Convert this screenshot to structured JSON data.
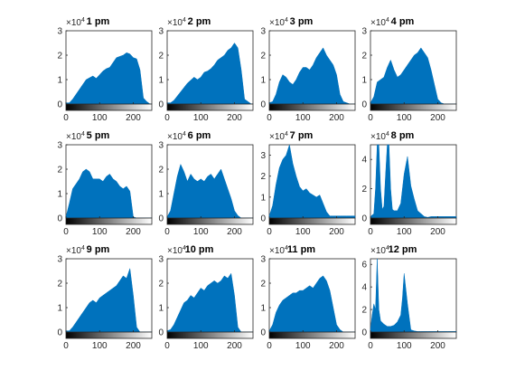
{
  "chart_data": [
    {
      "type": "area",
      "title": "1 pm",
      "exponent_label": "×10",
      "exponent": "4",
      "ylim": [
        0,
        3
      ],
      "yticks": [
        "0",
        "1",
        "2",
        "3"
      ],
      "xlim": [
        0,
        255
      ],
      "xticks": [
        "0",
        "100",
        "200"
      ],
      "color": "#0072BD",
      "x": [
        0,
        10,
        20,
        40,
        60,
        80,
        90,
        100,
        110,
        120,
        130,
        140,
        150,
        160,
        170,
        180,
        190,
        200,
        210,
        220,
        230,
        240,
        250,
        255
      ],
      "values": [
        0.05,
        0.05,
        0.2,
        0.6,
        1.0,
        1.15,
        1.05,
        1.2,
        1.35,
        1.45,
        1.5,
        1.7,
        1.9,
        1.95,
        2.0,
        2.1,
        2.05,
        1.9,
        1.85,
        1.4,
        0.25,
        0.1,
        0,
        0
      ]
    },
    {
      "type": "area",
      "title": "2 pm",
      "exponent_label": "×10",
      "exponent": "4",
      "ylim": [
        0,
        3
      ],
      "yticks": [
        "0",
        "1",
        "2",
        "3"
      ],
      "xlim": [
        0,
        255
      ],
      "xticks": [
        "0",
        "100",
        "200"
      ],
      "color": "#0072BD",
      "x": [
        0,
        10,
        20,
        40,
        60,
        80,
        90,
        100,
        110,
        120,
        130,
        140,
        150,
        160,
        170,
        180,
        190,
        200,
        210,
        220,
        230,
        240,
        250,
        255
      ],
      "values": [
        0.05,
        0.05,
        0.15,
        0.5,
        0.85,
        1.1,
        1.0,
        1.1,
        1.3,
        1.35,
        1.45,
        1.6,
        1.8,
        1.9,
        2.0,
        2.2,
        2.3,
        2.5,
        2.3,
        1.4,
        0.2,
        0.1,
        0,
        0
      ]
    },
    {
      "type": "area",
      "title": "3 pm",
      "exponent_label": "×10",
      "exponent": "4",
      "ylim": [
        0,
        3
      ],
      "yticks": [
        "0",
        "1",
        "2",
        "3"
      ],
      "xlim": [
        0,
        255
      ],
      "xticks": [
        "0",
        "100",
        "200"
      ],
      "color": "#0072BD",
      "x": [
        0,
        10,
        20,
        30,
        40,
        50,
        60,
        70,
        80,
        90,
        100,
        110,
        120,
        130,
        140,
        150,
        160,
        170,
        180,
        190,
        200,
        210,
        220,
        230,
        240,
        250,
        255
      ],
      "values": [
        0.05,
        0.1,
        0.4,
        0.9,
        1.2,
        1.1,
        0.9,
        0.8,
        1.0,
        1.3,
        1.5,
        1.5,
        1.4,
        1.6,
        1.9,
        2.1,
        2.3,
        2.0,
        1.8,
        1.6,
        1.2,
        0.4,
        0.1,
        0.05,
        0,
        0,
        0
      ]
    },
    {
      "type": "area",
      "title": "4 pm",
      "exponent_label": "×10",
      "exponent": "4",
      "ylim": [
        0,
        3
      ],
      "yticks": [
        "0",
        "1",
        "2",
        "3"
      ],
      "xlim": [
        0,
        255
      ],
      "xticks": [
        "0",
        "100",
        "200"
      ],
      "color": "#0072BD",
      "x": [
        0,
        10,
        20,
        30,
        40,
        50,
        60,
        70,
        80,
        90,
        100,
        110,
        120,
        130,
        140,
        150,
        160,
        170,
        180,
        190,
        200,
        210,
        220,
        230,
        240,
        250,
        255
      ],
      "values": [
        0.05,
        0.3,
        0.9,
        1.0,
        1.1,
        1.5,
        1.8,
        1.4,
        1.1,
        1.2,
        1.4,
        1.6,
        1.8,
        2.0,
        2.1,
        2.3,
        2.1,
        1.9,
        1.4,
        0.8,
        0.2,
        0.05,
        0,
        0,
        0,
        0,
        0
      ]
    },
    {
      "type": "area",
      "title": "5 pm",
      "exponent_label": "×10",
      "exponent": "4",
      "ylim": [
        0,
        3
      ],
      "yticks": [
        "0",
        "1",
        "2",
        "3"
      ],
      "xlim": [
        0,
        255
      ],
      "xticks": [
        "0",
        "100",
        "200"
      ],
      "color": "#0072BD",
      "x": [
        0,
        10,
        20,
        30,
        40,
        50,
        60,
        70,
        80,
        90,
        100,
        110,
        120,
        130,
        140,
        150,
        160,
        170,
        180,
        190,
        200,
        210,
        220,
        230,
        240,
        250,
        255
      ],
      "values": [
        0.05,
        0.6,
        1.2,
        1.4,
        1.6,
        1.9,
        2.0,
        1.9,
        1.6,
        1.6,
        1.6,
        1.5,
        1.7,
        1.8,
        1.6,
        1.5,
        1.3,
        1.2,
        1.3,
        1.1,
        0.05,
        0,
        0,
        0,
        0,
        0,
        0
      ]
    },
    {
      "type": "area",
      "title": "6 pm",
      "exponent_label": "×10",
      "exponent": "4",
      "ylim": [
        0,
        3
      ],
      "yticks": [
        "0",
        "1",
        "2",
        "3"
      ],
      "xlim": [
        0,
        255
      ],
      "xticks": [
        "0",
        "100",
        "200"
      ],
      "color": "#0072BD",
      "x": [
        0,
        10,
        20,
        30,
        40,
        50,
        60,
        70,
        80,
        90,
        100,
        110,
        120,
        130,
        140,
        150,
        160,
        170,
        180,
        190,
        200,
        210,
        220,
        230,
        240,
        250,
        255
      ],
      "values": [
        0.05,
        0.3,
        1.0,
        1.7,
        2.2,
        1.9,
        1.5,
        1.8,
        1.6,
        1.5,
        1.6,
        1.5,
        1.7,
        1.8,
        1.6,
        1.8,
        2.0,
        1.6,
        1.2,
        0.8,
        0.3,
        0.1,
        0,
        0,
        0,
        0,
        0
      ]
    },
    {
      "type": "area",
      "title": "7 pm",
      "exponent_label": "×10",
      "exponent": "4",
      "ylim": [
        0,
        3.5
      ],
      "yticks": [
        "0",
        "1",
        "2",
        "3"
      ],
      "xlim": [
        0,
        255
      ],
      "xticks": [
        "0",
        "100",
        "200"
      ],
      "color": "#0072BD",
      "x": [
        0,
        10,
        20,
        30,
        40,
        50,
        60,
        70,
        80,
        90,
        100,
        110,
        120,
        130,
        140,
        150,
        160,
        170,
        180,
        190,
        200,
        210,
        220,
        230,
        240,
        250,
        255
      ],
      "values": [
        0.1,
        0.6,
        1.6,
        2.4,
        2.8,
        3.0,
        3.5,
        2.6,
        2.0,
        1.5,
        1.3,
        1.4,
        1.2,
        1.1,
        1.0,
        1.1,
        0.7,
        0.3,
        0.1,
        0.1,
        0.1,
        0.1,
        0.1,
        0.1,
        0.1,
        0.1,
        0.1
      ]
    },
    {
      "type": "area",
      "title": "8 pm",
      "exponent_label": "×10",
      "exponent": "4",
      "ylim": [
        0,
        5
      ],
      "yticks": [
        "0",
        "2",
        "4"
      ],
      "xlim": [
        0,
        255
      ],
      "xticks": [
        "0",
        "100",
        "200"
      ],
      "color": "#0072BD",
      "x": [
        0,
        10,
        15,
        20,
        25,
        30,
        35,
        40,
        45,
        50,
        55,
        60,
        65,
        70,
        80,
        90,
        100,
        110,
        120,
        130,
        140,
        150,
        160,
        170,
        180,
        190,
        200,
        220,
        240,
        255
      ],
      "values": [
        0.1,
        0.3,
        2.0,
        5.0,
        5.0,
        2.0,
        0.6,
        0.8,
        3.0,
        5.0,
        5.0,
        2.0,
        0.6,
        0.5,
        0.5,
        1.0,
        3.0,
        4.2,
        2.2,
        1.3,
        0.5,
        0.3,
        0.1,
        0.05,
        0.1,
        0.1,
        0.1,
        0.1,
        0.1,
        0.1
      ]
    },
    {
      "type": "area",
      "title": "9 pm",
      "exponent_label": "×10",
      "exponent": "4",
      "ylim": [
        0,
        3
      ],
      "yticks": [
        "0",
        "1",
        "2",
        "3"
      ],
      "xlim": [
        0,
        255
      ],
      "xticks": [
        "0",
        "100",
        "200"
      ],
      "color": "#0072BD",
      "x": [
        0,
        10,
        20,
        30,
        40,
        50,
        60,
        70,
        80,
        90,
        100,
        110,
        120,
        130,
        140,
        150,
        160,
        170,
        180,
        190,
        200,
        210,
        220,
        230,
        240,
        250,
        255
      ],
      "values": [
        0.05,
        0.05,
        0.2,
        0.4,
        0.6,
        0.8,
        1.0,
        1.2,
        1.3,
        1.2,
        1.4,
        1.5,
        1.6,
        1.7,
        1.8,
        1.9,
        2.1,
        2.3,
        2.2,
        2.6,
        1.5,
        0.2,
        0,
        0,
        0,
        0,
        0
      ]
    },
    {
      "type": "area",
      "title": "10 pm",
      "exponent_label": "×10",
      "exponent": "4",
      "ylim": [
        0,
        3
      ],
      "yticks": [
        "0",
        "1",
        "2",
        "3"
      ],
      "xlim": [
        0,
        255
      ],
      "xticks": [
        "0",
        "100",
        "200"
      ],
      "color": "#0072BD",
      "x": [
        0,
        10,
        20,
        30,
        40,
        50,
        60,
        70,
        80,
        90,
        100,
        110,
        120,
        130,
        140,
        150,
        160,
        170,
        180,
        190,
        200,
        210,
        220,
        230,
        240,
        250,
        255
      ],
      "values": [
        0.05,
        0.1,
        0.3,
        0.6,
        0.9,
        1.2,
        1.3,
        1.5,
        1.4,
        1.6,
        1.8,
        1.7,
        1.9,
        2.0,
        2.1,
        2.0,
        2.1,
        2.3,
        2.2,
        2.4,
        1.5,
        0.2,
        0,
        0,
        0,
        0,
        0
      ]
    },
    {
      "type": "area",
      "title": "11 pm",
      "exponent_label": "×10",
      "exponent": "4",
      "ylim": [
        0,
        3
      ],
      "yticks": [
        "0",
        "1",
        "2",
        "3"
      ],
      "xlim": [
        0,
        255
      ],
      "xticks": [
        "0",
        "100",
        "200"
      ],
      "color": "#0072BD",
      "x": [
        0,
        10,
        20,
        30,
        40,
        50,
        60,
        70,
        80,
        90,
        100,
        110,
        120,
        130,
        140,
        150,
        160,
        170,
        180,
        190,
        200,
        210,
        220,
        230,
        240,
        250,
        255
      ],
      "values": [
        0.05,
        0.3,
        0.8,
        1.1,
        1.3,
        1.4,
        1.5,
        1.6,
        1.6,
        1.7,
        1.7,
        1.8,
        1.9,
        1.8,
        2.0,
        2.2,
        2.3,
        2.1,
        1.7,
        1.0,
        0.3,
        0.1,
        0,
        0,
        0,
        0,
        0
      ]
    },
    {
      "type": "area",
      "title": "12 pm",
      "exponent_label": "×10",
      "exponent": "4",
      "ylim": [
        0,
        6.5
      ],
      "yticks": [
        "0",
        "2",
        "4",
        "6"
      ],
      "xlim": [
        0,
        255
      ],
      "xticks": [
        "0",
        "100",
        "200"
      ],
      "color": "#0072BD",
      "x": [
        0,
        5,
        10,
        15,
        20,
        25,
        30,
        40,
        50,
        60,
        70,
        80,
        90,
        95,
        100,
        110,
        120,
        130,
        140,
        150,
        170,
        200,
        230,
        255
      ],
      "values": [
        0.2,
        1.5,
        2.5,
        2.0,
        6.5,
        2.0,
        1.0,
        0.7,
        0.5,
        0.5,
        0.6,
        0.9,
        1.5,
        3.0,
        5.2,
        2.5,
        0.2,
        0.1,
        0.05,
        0.05,
        0.05,
        0.05,
        0.05,
        0.05
      ]
    }
  ]
}
